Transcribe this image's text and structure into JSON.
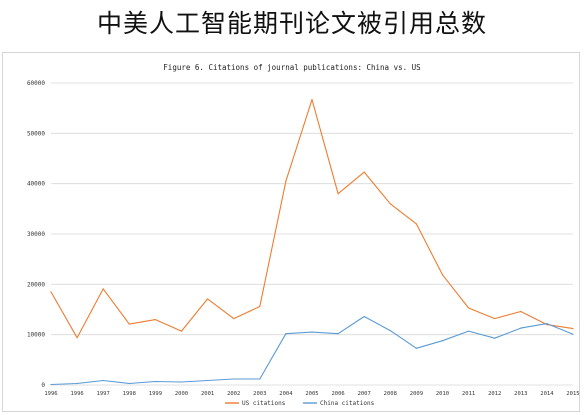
{
  "header": {
    "title": "中美人工智能期刊论文被引用总数"
  },
  "chart_data": {
    "type": "line",
    "title": "Figure 6. Citations of journal publications: China vs. US",
    "xlabel": "",
    "ylabel": "",
    "x": [
      "1996",
      "1996",
      "1997",
      "1998",
      "1999",
      "2000",
      "2001",
      "2002",
      "2003",
      "2004",
      "2005",
      "2006",
      "2007",
      "2008",
      "2009",
      "2010",
      "2011",
      "2012",
      "2013",
      "2014",
      "2015"
    ],
    "ylim": [
      0,
      60000
    ],
    "yticks": [
      "0",
      "10000",
      "20000",
      "30000",
      "40000",
      "50000",
      "60000"
    ],
    "grid": true,
    "legend_position": "bottom",
    "series": [
      {
        "name": "US citations",
        "color": "#ed7d31",
        "values": [
          18500,
          9400,
          19100,
          12100,
          13000,
          10700,
          17100,
          13200,
          15600,
          40500,
          56700,
          38000,
          42300,
          36000,
          32000,
          21900,
          15300,
          13200,
          14600,
          12000,
          11200
        ]
      },
      {
        "name": "China citations",
        "color": "#5b9bd5",
        "values": [
          100,
          300,
          900,
          300,
          700,
          600,
          900,
          1200,
          1200,
          10200,
          10500,
          10200,
          13600,
          10800,
          7300,
          8800,
          10700,
          9300,
          11300,
          12200,
          10100
        ]
      }
    ]
  }
}
